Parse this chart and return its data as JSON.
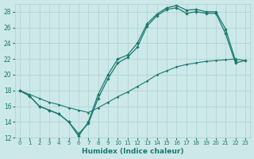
{
  "xlabel": "Humidex (Indice chaleur)",
  "bg_color": "#cce8e8",
  "grid_color": "#b0d0d0",
  "line_color": "#1a7a6e",
  "xlim": [
    -0.5,
    23.5
  ],
  "ylim": [
    12,
    29
  ],
  "xticks": [
    0,
    1,
    2,
    3,
    4,
    5,
    6,
    7,
    8,
    9,
    10,
    11,
    12,
    13,
    14,
    15,
    16,
    17,
    18,
    19,
    20,
    21,
    22,
    23
  ],
  "yticks": [
    12,
    14,
    16,
    18,
    20,
    22,
    24,
    26,
    28
  ],
  "line1_x": [
    0,
    1,
    2,
    3,
    4,
    5,
    6,
    7,
    8,
    9,
    10,
    11,
    12,
    13,
    14,
    15,
    16,
    17,
    18,
    19,
    20,
    21,
    22
  ],
  "line1_y": [
    18.0,
    17.3,
    16.0,
    15.5,
    15.0,
    14.0,
    12.2,
    14.0,
    17.5,
    20.0,
    22.0,
    22.5,
    24.0,
    26.5,
    27.7,
    28.5,
    28.8,
    28.2,
    28.3,
    28.0,
    28.0,
    25.8,
    21.8
  ],
  "line2_x": [
    0,
    1,
    2,
    3,
    4,
    5,
    6,
    7,
    8,
    9,
    10,
    11,
    12,
    13,
    14,
    15,
    16,
    17,
    18,
    19,
    20,
    21,
    22,
    23
  ],
  "line2_y": [
    18.0,
    17.3,
    16.0,
    15.5,
    15.0,
    14.0,
    12.5,
    13.8,
    17.0,
    19.5,
    21.5,
    22.2,
    23.5,
    26.2,
    27.5,
    28.3,
    28.5,
    27.8,
    28.0,
    27.8,
    27.8,
    25.2,
    21.5,
    21.8
  ],
  "line3_x": [
    0,
    1,
    2,
    3,
    4,
    5,
    6,
    7,
    8,
    9,
    10,
    11,
    12,
    13,
    14,
    15,
    16,
    17,
    18,
    19,
    20,
    21,
    22,
    23
  ],
  "line3_y": [
    18.0,
    17.5,
    17.0,
    16.5,
    16.2,
    15.8,
    15.5,
    15.2,
    15.8,
    16.5,
    17.2,
    17.8,
    18.5,
    19.2,
    20.0,
    20.5,
    21.0,
    21.3,
    21.5,
    21.7,
    21.8,
    21.9,
    22.0,
    21.8
  ]
}
